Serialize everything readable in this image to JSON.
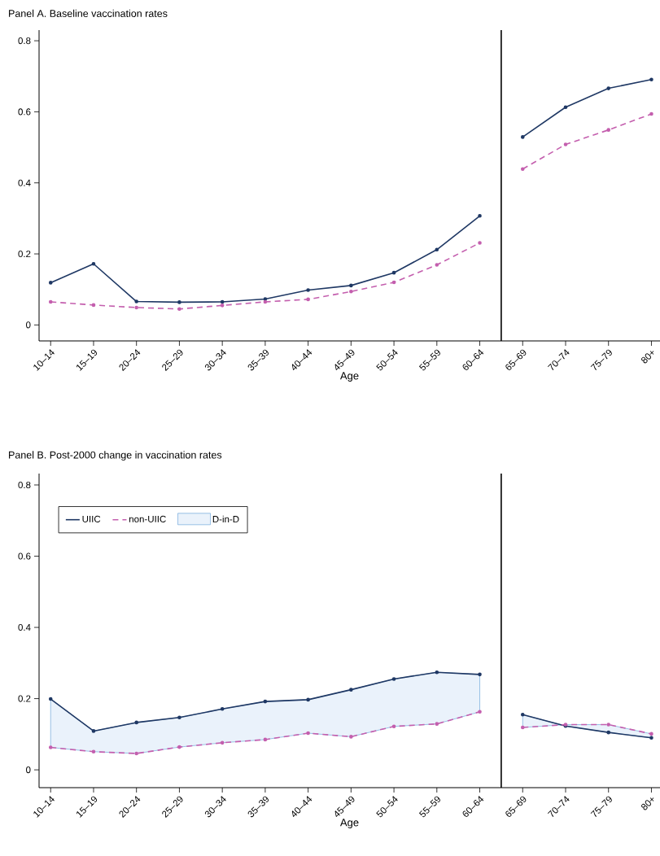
{
  "chart_data": [
    {
      "type": "line",
      "title": "Panel A. Baseline vaccination rates",
      "xlabel": "Age",
      "categories": [
        "10–14",
        "15–19",
        "20–24",
        "25–29",
        "30–34",
        "35–39",
        "40–44",
        "45–49",
        "50–54",
        "55–59",
        "60–64",
        "65–69",
        "70–74",
        "75–79",
        "80+"
      ],
      "ylim": [
        -0.045,
        0.83
      ],
      "yticks": [
        0,
        0.2,
        0.4,
        0.6,
        0.8
      ],
      "marker": "circle",
      "series": [
        {
          "color": "#1f3864",
          "line_style": "solid",
          "values": [
            0.119,
            0.172,
            0.066,
            0.064,
            0.065,
            0.073,
            0.098,
            0.111,
            0.147,
            0.212,
            0.307,
            null,
            null,
            null,
            null
          ]
        },
        {
          "color": "#c45fae",
          "line_style": "dashed",
          "values": [
            0.065,
            0.056,
            0.049,
            0.045,
            0.055,
            0.065,
            0.072,
            0.094,
            0.12,
            0.169,
            0.231,
            null,
            null,
            null,
            null
          ]
        },
        {
          "color": "#1f3864",
          "line_style": "solid",
          "values": [
            null,
            null,
            null,
            null,
            null,
            null,
            null,
            null,
            null,
            null,
            null,
            0.529,
            0.613,
            0.666,
            0.691
          ]
        },
        {
          "color": "#c45fae",
          "line_style": "dashed",
          "values": [
            null,
            null,
            null,
            null,
            null,
            null,
            null,
            null,
            null,
            null,
            null,
            0.439,
            0.508,
            0.549,
            0.594
          ]
        }
      ]
    },
    {
      "type": "line",
      "title": "Panel B. Post-2000 change in vaccination rates",
      "xlabel": "Age",
      "categories": [
        "10–14",
        "15–19",
        "20–24",
        "25–29",
        "30–34",
        "35–39",
        "40–44",
        "45–49",
        "50–54",
        "55–59",
        "60–64",
        "65–69",
        "70–74",
        "75–79",
        "80+"
      ],
      "ylim": [
        -0.05,
        0.832
      ],
      "yticks": [
        0,
        0.2,
        0.4,
        0.6,
        0.8
      ],
      "marker": "circle",
      "legend": "top left",
      "annotations": [
        "D-in-D"
      ],
      "series": [
        {
          "name": "UIIC",
          "color": "#1f3864",
          "line_style": "solid",
          "values": [
            0.199,
            0.109,
            0.133,
            0.147,
            0.171,
            0.192,
            0.197,
            0.225,
            0.255,
            0.274,
            0.268,
            null,
            null,
            null,
            null
          ],
          "upper": [
            0.199,
            0.109,
            0.133,
            0.147,
            0.171,
            0.192,
            0.197,
            0.225,
            0.255,
            0.274,
            0.268,
            null,
            null,
            null,
            null
          ],
          "lower": [
            0.063,
            0.051,
            0.046,
            0.064,
            0.076,
            0.085,
            0.103,
            0.093,
            0.122,
            0.129,
            0.163,
            null,
            null,
            null,
            null
          ]
        },
        {
          "name": "non-UIIC",
          "color": "#c45fae",
          "line_style": "dashed",
          "values": [
            0.063,
            0.051,
            0.046,
            0.064,
            0.076,
            0.085,
            0.103,
            0.093,
            0.122,
            0.129,
            0.163,
            null,
            null,
            null,
            null
          ]
        },
        {
          "color": "#1f3864",
          "line_style": "solid",
          "values": [
            null,
            null,
            null,
            null,
            null,
            null,
            null,
            null,
            null,
            null,
            null,
            0.155,
            0.123,
            0.105,
            0.09
          ],
          "upper": [
            null,
            null,
            null,
            null,
            null,
            null,
            null,
            null,
            null,
            null,
            null,
            0.155,
            0.123,
            0.105,
            0.09
          ],
          "lower": [
            null,
            null,
            null,
            null,
            null,
            null,
            null,
            null,
            null,
            null,
            null,
            0.119,
            0.127,
            0.127,
            0.101
          ]
        },
        {
          "color": "#c45fae",
          "line_style": "dashed",
          "values": [
            null,
            null,
            null,
            null,
            null,
            null,
            null,
            null,
            null,
            null,
            null,
            0.119,
            0.127,
            0.127,
            0.101
          ]
        }
      ]
    }
  ]
}
